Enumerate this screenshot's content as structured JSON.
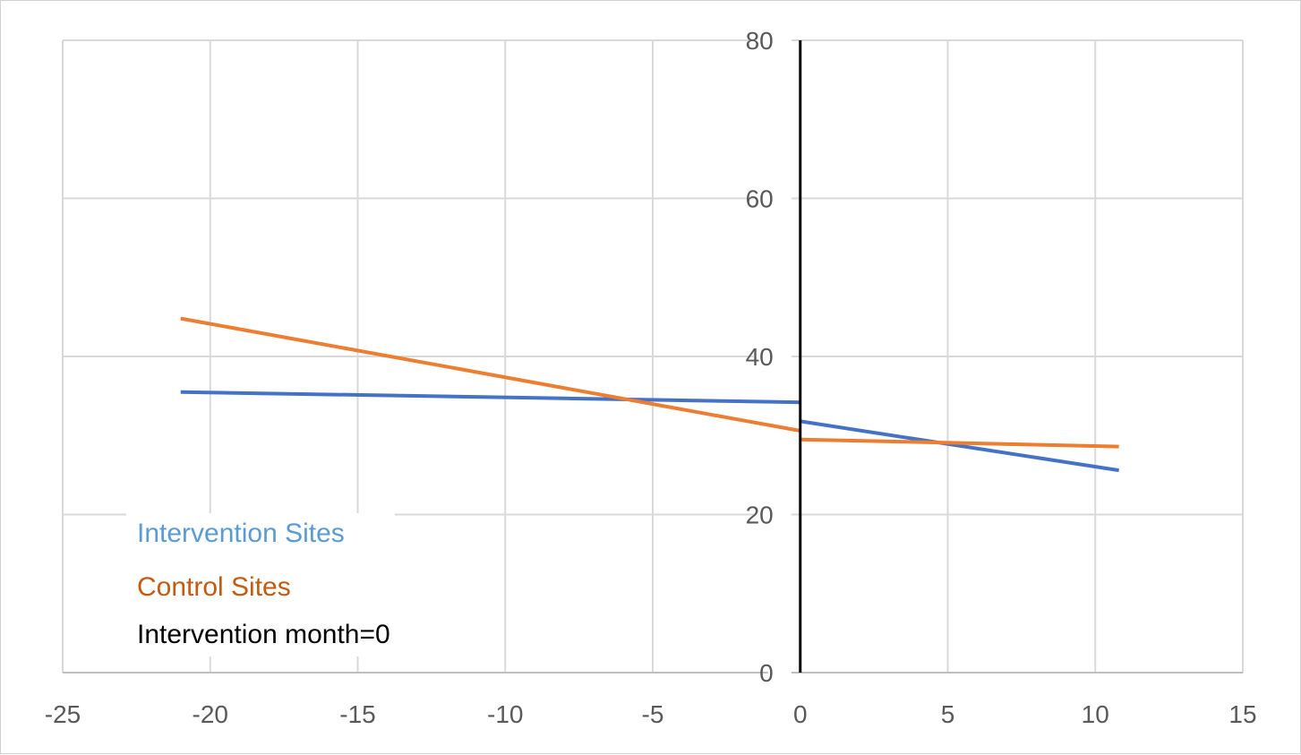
{
  "chart_data": {
    "type": "line",
    "title": "",
    "xlabel": "",
    "ylabel": "",
    "xlim": [
      -25,
      15
    ],
    "ylim": [
      0,
      80
    ],
    "x_ticks": [
      -25,
      -20,
      -15,
      -10,
      -5,
      0,
      5,
      10,
      15
    ],
    "y_ticks": [
      0,
      20,
      40,
      60,
      80
    ],
    "x_tick_labels": [
      "-25",
      "-20",
      "-15",
      "-10",
      "-5",
      "0",
      "5",
      "10",
      "15"
    ],
    "y_tick_labels": [
      "0",
      "20",
      "40",
      "60",
      "80"
    ],
    "grid": true,
    "y_axis_at_x": 0,
    "legend_placement": "bottom-left",
    "series": [
      {
        "name": "Intervention Sites",
        "color": "#4472C4",
        "label_color": "#5B9BD5",
        "segments": [
          {
            "x": [
              -21,
              0
            ],
            "y": [
              35.5,
              34.2
            ]
          },
          {
            "x": [
              0,
              10.8
            ],
            "y": [
              31.8,
              25.6
            ]
          }
        ]
      },
      {
        "name": "Control Sites",
        "color": "#ED7D31",
        "label_color": "#C55A11",
        "segments": [
          {
            "x": [
              -21,
              0
            ],
            "y": [
              44.8,
              30.6
            ]
          },
          {
            "x": [
              0,
              10.8
            ],
            "y": [
              29.5,
              28.6
            ]
          }
        ]
      }
    ],
    "reference_line": {
      "name": "Intervention month=0",
      "x": 0,
      "color": "#000000"
    }
  }
}
